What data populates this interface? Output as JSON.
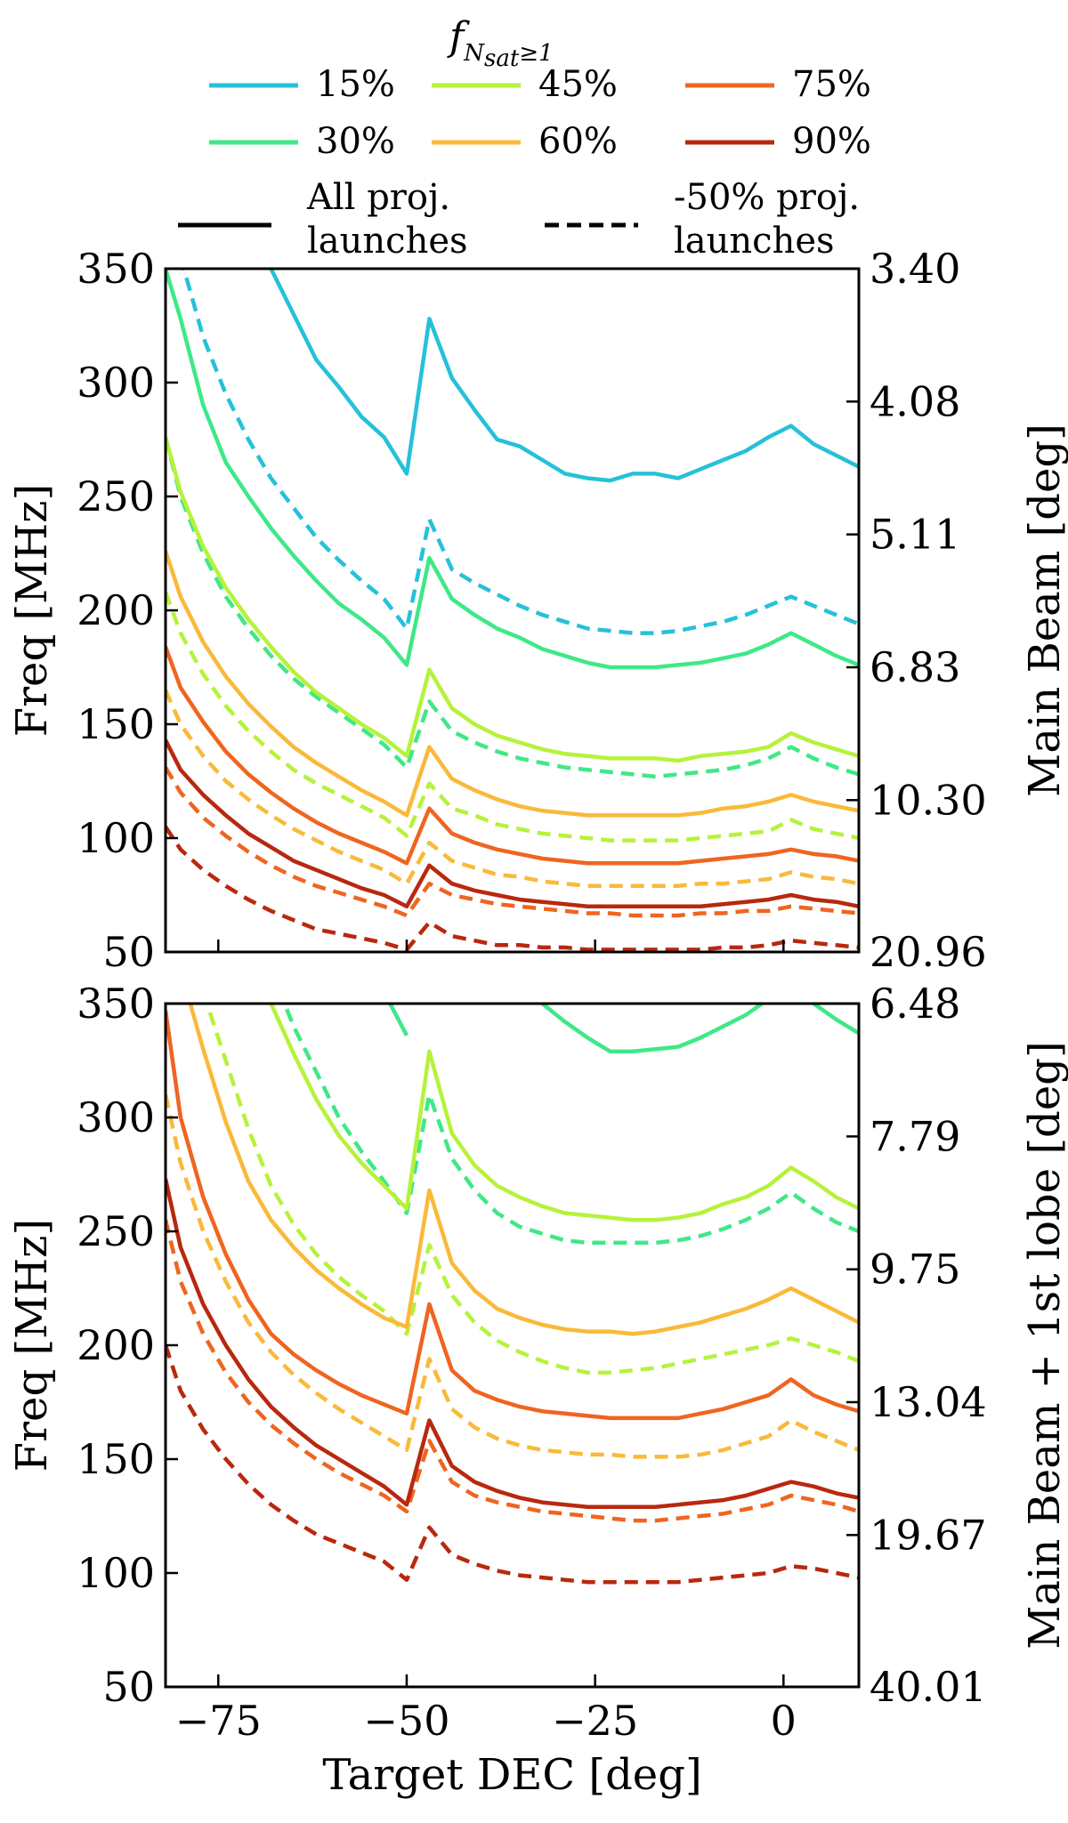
{
  "legend": {
    "title": "f",
    "title_subscript": "N",
    "title_subscript2": "sat",
    "title_suffix": "≥1",
    "percent_entries": [
      {
        "label": "15%",
        "color": "#26c1d9"
      },
      {
        "label": "45%",
        "color": "#b6f23c"
      },
      {
        "label": "75%",
        "color": "#ef6520"
      },
      {
        "label": "30%",
        "color": "#3fe887"
      },
      {
        "label": "60%",
        "color": "#f9b93a"
      },
      {
        "label": "90%",
        "color": "#b8280f"
      }
    ],
    "style_entries": [
      {
        "label_line1": "All proj.",
        "label_line2": "launches",
        "dash": "solid"
      },
      {
        "label_line1": "-50% proj.",
        "label_line2": "launches",
        "dash": "dashed"
      }
    ]
  },
  "chart_data": [
    {
      "type": "line",
      "panel": "top",
      "xlabel": "",
      "ylabel": "Freq [MHz]",
      "ylabel_right": "Main Beam [deg]",
      "xlim": [
        -82,
        10
      ],
      "ylim": [
        50,
        350
      ],
      "yticks": [
        "50",
        "100",
        "150",
        "200",
        "250",
        "300",
        "350"
      ],
      "yticks_right": [
        "3.40",
        "4.08",
        "5.11",
        "6.83",
        "10.30",
        "20.96"
      ],
      "yticks_right_values": [
        350,
        291.67,
        233.33,
        175,
        116.67,
        50
      ],
      "x": [
        -82,
        -80,
        -77,
        -74,
        -71,
        -68,
        -65,
        -62,
        -59,
        -56,
        -53,
        -50,
        -47,
        -44,
        -41,
        -38,
        -35,
        -32,
        -29,
        -26,
        -23,
        -20,
        -17,
        -14,
        -11,
        -8,
        -5,
        -2,
        1,
        4,
        7,
        10
      ],
      "series": [
        {
          "color": "#26c1d9",
          "dash": "solid",
          "values": [
            null,
            null,
            null,
            372,
            362,
            350,
            330,
            310,
            298,
            285,
            276,
            260,
            328,
            302,
            288,
            275,
            272,
            266,
            260,
            258,
            257,
            260,
            260,
            258,
            262,
            266,
            270,
            276,
            281,
            273,
            268,
            263
          ]
        },
        {
          "color": "#26c1d9",
          "dash": "dashed",
          "values": [
            null,
            355,
            320,
            295,
            275,
            258,
            245,
            232,
            222,
            213,
            205,
            192,
            240,
            218,
            212,
            207,
            202,
            198,
            195,
            192,
            191,
            190,
            190,
            191,
            193,
            195,
            198,
            202,
            206,
            202,
            198,
            194
          ]
        },
        {
          "color": "#3fe887",
          "dash": "solid",
          "values": [
            350,
            328,
            290,
            265,
            250,
            236,
            224,
            213,
            203,
            196,
            188,
            176,
            223,
            205,
            198,
            192,
            188,
            183,
            180,
            177,
            175,
            175,
            175,
            176,
            177,
            179,
            181,
            185,
            190,
            185,
            180,
            176
          ]
        },
        {
          "color": "#3fe887",
          "dash": "dashed",
          "values": [
            276,
            250,
            225,
            206,
            192,
            180,
            170,
            162,
            155,
            148,
            141,
            131,
            160,
            147,
            142,
            138,
            135,
            133,
            131,
            130,
            129,
            128,
            127,
            128,
            129,
            130,
            132,
            135,
            140,
            135,
            131,
            128
          ]
        },
        {
          "color": "#b6f23c",
          "dash": "solid",
          "values": [
            276,
            252,
            228,
            210,
            196,
            184,
            173,
            164,
            157,
            150,
            144,
            136,
            174,
            157,
            150,
            145,
            142,
            139,
            137,
            136,
            135,
            135,
            135,
            134,
            136,
            137,
            138,
            140,
            146,
            142,
            139,
            136
          ]
        },
        {
          "color": "#b6f23c",
          "dash": "dashed",
          "values": [
            208,
            190,
            172,
            158,
            147,
            138,
            130,
            124,
            119,
            114,
            109,
            101,
            124,
            113,
            110,
            106,
            104,
            102,
            101,
            100,
            99,
            99,
            99,
            99,
            100,
            101,
            102,
            103,
            108,
            104,
            102,
            100
          ]
        },
        {
          "color": "#f9b93a",
          "dash": "solid",
          "values": [
            226,
            206,
            186,
            171,
            159,
            149,
            140,
            133,
            127,
            121,
            116,
            110,
            140,
            126,
            121,
            117,
            114,
            112,
            111,
            110,
            110,
            110,
            110,
            110,
            111,
            113,
            114,
            116,
            119,
            116,
            114,
            112
          ]
        },
        {
          "color": "#f9b93a",
          "dash": "dashed",
          "values": [
            165,
            150,
            136,
            125,
            117,
            110,
            104,
            99,
            94,
            90,
            86,
            80,
            98,
            90,
            87,
            84,
            83,
            81,
            80,
            79,
            79,
            79,
            79,
            79,
            80,
            80,
            81,
            82,
            85,
            83,
            82,
            80
          ]
        },
        {
          "color": "#ef6520",
          "dash": "solid",
          "values": [
            184,
            166,
            151,
            138,
            128,
            120,
            113,
            107,
            102,
            98,
            94,
            89,
            113,
            102,
            98,
            95,
            93,
            91,
            90,
            89,
            89,
            89,
            89,
            89,
            90,
            91,
            92,
            93,
            95,
            93,
            92,
            90
          ]
        },
        {
          "color": "#ef6520",
          "dash": "dashed",
          "values": [
            131,
            120,
            109,
            101,
            94,
            88,
            83,
            79,
            76,
            73,
            70,
            66,
            80,
            75,
            73,
            71,
            70,
            69,
            68,
            67,
            67,
            66,
            66,
            66,
            67,
            67,
            68,
            68,
            70,
            69,
            68,
            67
          ]
        },
        {
          "color": "#b8280f",
          "dash": "solid",
          "values": [
            143,
            130,
            119,
            110,
            102,
            96,
            90,
            86,
            82,
            78,
            75,
            70,
            88,
            80,
            77,
            75,
            73,
            72,
            71,
            70,
            70,
            70,
            70,
            70,
            70,
            71,
            72,
            73,
            75,
            73,
            72,
            70
          ]
        },
        {
          "color": "#b8280f",
          "dash": "dashed",
          "values": [
            105,
            95,
            86,
            79,
            73,
            68,
            64,
            60,
            58,
            56,
            54,
            51,
            63,
            57,
            55,
            53,
            53,
            52,
            52,
            51,
            51,
            51,
            51,
            51,
            51,
            52,
            52,
            53,
            55,
            54,
            53,
            52
          ]
        }
      ]
    },
    {
      "type": "line",
      "panel": "bottom",
      "xlabel": "Target DEC [deg]",
      "ylabel": "Freq [MHz]",
      "ylabel_right": "Main Beam + 1st lobe [deg]",
      "xlim": [
        -82,
        10
      ],
      "ylim": [
        50,
        350
      ],
      "xticks": [
        -75,
        -50,
        -25,
        0
      ],
      "xtick_labels": [
        "−75",
        "−50",
        "−25",
        "0"
      ],
      "yticks": [
        "50",
        "100",
        "150",
        "200",
        "250",
        "300",
        "350"
      ],
      "yticks_right": [
        "6.48",
        "7.79",
        "9.75",
        "13.04",
        "19.67",
        "40.01"
      ],
      "yticks_right_values": [
        350,
        291.67,
        233.33,
        175,
        116.67,
        50
      ],
      "x": [
        -82,
        -80,
        -77,
        -74,
        -71,
        -68,
        -65,
        -62,
        -59,
        -56,
        -53,
        -50,
        -47,
        -44,
        -41,
        -38,
        -35,
        -32,
        -29,
        -26,
        -23,
        -20,
        -17,
        -14,
        -11,
        -8,
        -5,
        -2,
        1,
        4,
        7,
        10
      ],
      "series": [
        {
          "color": "#3fe887",
          "dash": "solid",
          "values": [
            null,
            null,
            null,
            null,
            null,
            null,
            null,
            null,
            null,
            null,
            355,
            336,
            null,
            null,
            null,
            null,
            360,
            350,
            342,
            335,
            329,
            329,
            330,
            331,
            335,
            340,
            345,
            352,
            358,
            350,
            343,
            337
          ]
        },
        {
          "color": "#3fe887",
          "dash": "dashed",
          "values": [
            null,
            null,
            null,
            null,
            null,
            365,
            340,
            320,
            300,
            285,
            272,
            258,
            310,
            282,
            268,
            258,
            252,
            249,
            246,
            245,
            245,
            245,
            245,
            246,
            248,
            251,
            255,
            260,
            267,
            260,
            254,
            250
          ]
        },
        {
          "color": "#b6f23c",
          "dash": "solid",
          "values": [
            null,
            null,
            null,
            null,
            null,
            350,
            328,
            308,
            292,
            280,
            270,
            260,
            329,
            293,
            279,
            270,
            265,
            261,
            258,
            257,
            256,
            255,
            255,
            256,
            258,
            262,
            265,
            270,
            278,
            272,
            265,
            260
          ]
        },
        {
          "color": "#b6f23c",
          "dash": "dashed",
          "values": [
            null,
            null,
            355,
            325,
            295,
            270,
            253,
            240,
            230,
            222,
            215,
            205,
            244,
            222,
            210,
            202,
            197,
            193,
            190,
            188,
            188,
            189,
            190,
            192,
            194,
            196,
            198,
            200,
            203,
            200,
            197,
            193
          ]
        },
        {
          "color": "#f9b93a",
          "dash": "solid",
          "values": [
            null,
            365,
            330,
            298,
            272,
            255,
            243,
            233,
            225,
            218,
            212,
            208,
            268,
            236,
            224,
            216,
            212,
            209,
            207,
            206,
            206,
            205,
            206,
            208,
            210,
            213,
            216,
            220,
            225,
            220,
            215,
            210
          ]
        },
        {
          "color": "#f9b93a",
          "dash": "dashed",
          "values": [
            310,
            280,
            250,
            228,
            210,
            197,
            187,
            179,
            172,
            166,
            160,
            154,
            194,
            172,
            164,
            159,
            156,
            154,
            153,
            152,
            152,
            151,
            151,
            151,
            152,
            154,
            157,
            160,
            167,
            162,
            158,
            154
          ]
        },
        {
          "color": "#ef6520",
          "dash": "solid",
          "values": [
            347,
            300,
            265,
            240,
            220,
            205,
            196,
            189,
            183,
            178,
            174,
            170,
            218,
            189,
            180,
            176,
            173,
            171,
            170,
            169,
            168,
            168,
            168,
            168,
            170,
            172,
            175,
            178,
            185,
            178,
            174,
            171
          ]
        },
        {
          "color": "#ef6520",
          "dash": "dashed",
          "values": [
            255,
            228,
            205,
            188,
            175,
            165,
            157,
            150,
            144,
            139,
            134,
            127,
            158,
            140,
            134,
            131,
            129,
            127,
            126,
            125,
            124,
            123,
            123,
            124,
            125,
            126,
            128,
            130,
            134,
            132,
            130,
            127
          ]
        },
        {
          "color": "#b8280f",
          "dash": "solid",
          "values": [
            273,
            243,
            218,
            200,
            185,
            173,
            164,
            156,
            150,
            144,
            138,
            130,
            167,
            147,
            140,
            136,
            133,
            131,
            130,
            129,
            129,
            129,
            129,
            130,
            131,
            132,
            134,
            137,
            140,
            138,
            135,
            133
          ]
        },
        {
          "color": "#b8280f",
          "dash": "dashed",
          "values": [
            200,
            180,
            163,
            150,
            139,
            130,
            123,
            117,
            113,
            109,
            105,
            97,
            120,
            108,
            104,
            101,
            99,
            98,
            97,
            96,
            96,
            96,
            96,
            96,
            97,
            98,
            99,
            100,
            103,
            102,
            100,
            98
          ]
        }
      ]
    }
  ]
}
